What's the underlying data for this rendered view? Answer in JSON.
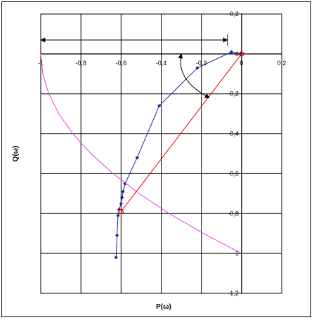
{
  "chart_data": {
    "type": "scatter",
    "title": "",
    "xlabel": "P(ω)",
    "ylabel": "Q(ω)",
    "xlim": [
      -1,
      0.2
    ],
    "ylim": [
      -1.2,
      0.2
    ],
    "grid": true,
    "x_ticks": [
      "-1",
      "-0,8",
      "-0,6",
      "-0,4",
      "-0,2",
      "0",
      "0,2"
    ],
    "y_ticks": [
      "0,2",
      "0",
      "-0,2",
      "-0,4",
      "-0,6",
      "-0,8",
      "-1",
      "-1,2"
    ],
    "series": [
      {
        "color": "#1f1f8f",
        "style": "line-markers",
        "points": [
          [
            -0.005,
            0.0
          ],
          [
            -0.05,
            0.01
          ],
          [
            -0.22,
            -0.07
          ],
          [
            -0.41,
            -0.26
          ],
          [
            -0.52,
            -0.52
          ],
          [
            -0.58,
            -0.65
          ],
          [
            -0.59,
            -0.69
          ],
          [
            -0.595,
            -0.72
          ],
          [
            -0.6,
            -0.75
          ],
          [
            -0.61,
            -0.78
          ],
          [
            -0.615,
            -0.81
          ],
          [
            -0.62,
            -0.91
          ],
          [
            -0.625,
            -1.02
          ]
        ]
      },
      {
        "color": "#e040e0",
        "style": "line",
        "points": [
          [
            -1.0,
            0.0
          ],
          [
            -0.99,
            -0.1
          ],
          [
            -0.96,
            -0.2
          ],
          [
            -0.91,
            -0.3
          ],
          [
            -0.84,
            -0.4
          ],
          [
            -0.75,
            -0.5
          ],
          [
            -0.64,
            -0.6
          ],
          [
            -0.51,
            -0.7
          ],
          [
            -0.36,
            -0.8
          ],
          [
            -0.19,
            -0.9
          ],
          [
            0.0,
            -1.0
          ]
        ]
      },
      {
        "color": "#e00000",
        "style": "line",
        "points": [
          [
            0.0,
            0.0
          ],
          [
            -0.6,
            -0.79
          ]
        ]
      }
    ],
    "highlights": [
      {
        "color": "#e00000",
        "x": 0.0,
        "y": 0.0
      },
      {
        "color": "#e00000",
        "x": -0.6,
        "y": -0.79
      }
    ],
    "annotations": [
      {
        "kind": "double-arrow",
        "x1": -1.0,
        "y1": 0.07,
        "x2": -0.07,
        "y2": 0.07,
        "color": "#000000"
      },
      {
        "kind": "curved-arrow",
        "x1": -0.3,
        "y1": 0.0,
        "x2": -0.16,
        "y2": -0.22,
        "color": "#000000"
      }
    ]
  }
}
